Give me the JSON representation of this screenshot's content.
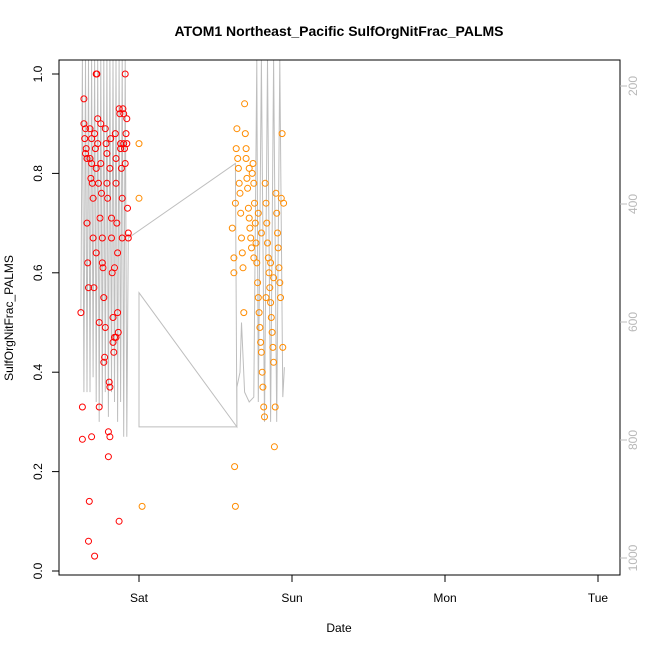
{
  "chart_data": {
    "type": "scatter",
    "title": "ATOM1 Northeast_Pacific SulfOrgNitFrac_PALMS",
    "xlabel": "Date",
    "ylabel": "SulfOrgNitFrac_PALMS",
    "x_ticks": [
      "Sat",
      "Sun",
      "Mon",
      "Tue"
    ],
    "ylim": [
      0,
      1.0
    ],
    "y_ticks": [
      "0.0",
      "0.2",
      "0.4",
      "0.6",
      "0.8",
      "1.0"
    ],
    "right_axis": {
      "reversed": true,
      "range": [
        180,
        1040
      ],
      "ticks": [
        "200",
        "400",
        "600",
        "800",
        "1000"
      ],
      "color": "#bebebe"
    },
    "colors": {
      "early": "#ff0000",
      "late": "#ff8c00",
      "line": "#bebebe"
    },
    "series": [
      {
        "values": [
          [
            -0.38,
            0.52
          ],
          [
            -0.37,
            0.33
          ],
          [
            -0.37,
            0.265
          ],
          [
            -0.36,
            0.95
          ],
          [
            -0.36,
            0.9
          ],
          [
            -0.355,
            0.87
          ],
          [
            -0.35,
            0.89
          ],
          [
            -0.35,
            0.84
          ],
          [
            -0.345,
            0.85
          ],
          [
            -0.34,
            0.83
          ],
          [
            -0.34,
            0.7
          ],
          [
            -0.335,
            0.62
          ],
          [
            -0.33,
            0.57
          ],
          [
            -0.33,
            0.06
          ],
          [
            -0.325,
            0.14
          ],
          [
            -0.32,
            0.83
          ],
          [
            -0.32,
            0.89
          ],
          [
            -0.315,
            0.79
          ],
          [
            -0.31,
            0.82
          ],
          [
            -0.31,
            0.87
          ],
          [
            -0.305,
            0.78
          ],
          [
            -0.3,
            0.75
          ],
          [
            -0.3,
            0.67
          ],
          [
            -0.295,
            0.57
          ],
          [
            -0.29,
            0.03
          ],
          [
            -0.29,
            0.88
          ],
          [
            -0.285,
            0.85
          ],
          [
            -0.28,
            0.81
          ],
          [
            -0.28,
            0.64
          ],
          [
            -0.275,
            1.0
          ],
          [
            -0.27,
            0.91
          ],
          [
            -0.27,
            0.86
          ],
          [
            -0.265,
            0.78
          ],
          [
            -0.26,
            0.5
          ],
          [
            -0.26,
            0.33
          ],
          [
            -0.255,
            0.71
          ],
          [
            -0.25,
            0.9
          ],
          [
            -0.25,
            0.82
          ],
          [
            -0.245,
            0.76
          ],
          [
            -0.24,
            0.67
          ],
          [
            -0.24,
            0.62
          ],
          [
            -0.235,
            0.61
          ],
          [
            -0.23,
            0.55
          ],
          [
            -0.23,
            0.42
          ],
          [
            -0.225,
            0.43
          ],
          [
            -0.22,
            0.49
          ],
          [
            -0.22,
            0.89
          ],
          [
            -0.215,
            0.86
          ],
          [
            -0.21,
            0.84
          ],
          [
            -0.21,
            0.78
          ],
          [
            -0.205,
            0.75
          ],
          [
            -0.2,
            0.28
          ],
          [
            -0.2,
            0.23
          ],
          [
            -0.195,
            0.38
          ],
          [
            -0.19,
            0.27
          ],
          [
            -0.19,
            0.81
          ],
          [
            -0.185,
            0.87
          ],
          [
            -0.18,
            0.71
          ],
          [
            -0.18,
            0.67
          ],
          [
            -0.175,
            0.6
          ],
          [
            -0.17,
            0.51
          ],
          [
            -0.17,
            0.46
          ],
          [
            -0.165,
            0.44
          ],
          [
            -0.16,
            0.47
          ],
          [
            -0.16,
            0.61
          ],
          [
            -0.155,
            0.88
          ],
          [
            -0.15,
            0.83
          ],
          [
            -0.15,
            0.78
          ],
          [
            -0.145,
            0.7
          ],
          [
            -0.14,
            0.64
          ],
          [
            -0.14,
            0.52
          ],
          [
            -0.135,
            0.48
          ],
          [
            -0.13,
            0.1
          ],
          [
            -0.13,
            0.93
          ],
          [
            -0.125,
            0.92
          ],
          [
            -0.12,
            0.86
          ],
          [
            -0.12,
            0.85
          ],
          [
            -0.115,
            0.81
          ],
          [
            -0.11,
            0.75
          ],
          [
            -0.11,
            0.67
          ],
          [
            -0.105,
            0.93
          ],
          [
            -0.1,
            0.92
          ],
          [
            -0.1,
            0.86
          ],
          [
            -0.095,
            0.85
          ],
          [
            -0.09,
            0.82
          ],
          [
            -0.09,
            1.0
          ],
          [
            -0.085,
            0.88
          ],
          [
            -0.08,
            0.86
          ],
          [
            -0.08,
            0.91
          ],
          [
            -0.075,
            0.73
          ],
          [
            -0.07,
            0.68
          ],
          [
            -0.07,
            0.67
          ],
          [
            -0.31,
            0.27
          ],
          [
            -0.28,
            1.0
          ],
          [
            -0.19,
            0.37
          ],
          [
            -0.15,
            0.47
          ]
        ]
      },
      {
        "values": [
          [
            0.0,
            0.86
          ],
          [
            0.0,
            0.75
          ],
          [
            0.02,
            0.13
          ],
          [
            0.61,
            0.69
          ],
          [
            0.62,
            0.63
          ],
          [
            0.62,
            0.6
          ],
          [
            0.625,
            0.21
          ],
          [
            0.63,
            0.13
          ],
          [
            0.63,
            0.74
          ],
          [
            0.635,
            0.85
          ],
          [
            0.64,
            0.89
          ],
          [
            0.645,
            0.83
          ],
          [
            0.65,
            0.81
          ],
          [
            0.655,
            0.78
          ],
          [
            0.66,
            0.76
          ],
          [
            0.665,
            0.72
          ],
          [
            0.67,
            0.67
          ],
          [
            0.675,
            0.64
          ],
          [
            0.68,
            0.61
          ],
          [
            0.685,
            0.52
          ],
          [
            0.69,
            0.94
          ],
          [
            0.695,
            0.88
          ],
          [
            0.7,
            0.83
          ],
          [
            0.705,
            0.79
          ],
          [
            0.71,
            0.77
          ],
          [
            0.715,
            0.73
          ],
          [
            0.72,
            0.71
          ],
          [
            0.725,
            0.69
          ],
          [
            0.73,
            0.67
          ],
          [
            0.735,
            0.65
          ],
          [
            0.74,
            0.8
          ],
          [
            0.745,
            0.82
          ],
          [
            0.75,
            0.78
          ],
          [
            0.755,
            0.74
          ],
          [
            0.76,
            0.7
          ],
          [
            0.765,
            0.66
          ],
          [
            0.77,
            0.62
          ],
          [
            0.775,
            0.58
          ],
          [
            0.78,
            0.55
          ],
          [
            0.785,
            0.52
          ],
          [
            0.79,
            0.49
          ],
          [
            0.795,
            0.46
          ],
          [
            0.8,
            0.44
          ],
          [
            0.805,
            0.4
          ],
          [
            0.81,
            0.37
          ],
          [
            0.815,
            0.33
          ],
          [
            0.82,
            0.31
          ],
          [
            0.825,
            0.78
          ],
          [
            0.83,
            0.74
          ],
          [
            0.835,
            0.7
          ],
          [
            0.84,
            0.66
          ],
          [
            0.845,
            0.63
          ],
          [
            0.85,
            0.6
          ],
          [
            0.855,
            0.57
          ],
          [
            0.86,
            0.54
          ],
          [
            0.865,
            0.51
          ],
          [
            0.87,
            0.48
          ],
          [
            0.875,
            0.45
          ],
          [
            0.88,
            0.42
          ],
          [
            0.885,
            0.25
          ],
          [
            0.89,
            0.33
          ],
          [
            0.895,
            0.76
          ],
          [
            0.9,
            0.72
          ],
          [
            0.905,
            0.68
          ],
          [
            0.91,
            0.65
          ],
          [
            0.915,
            0.61
          ],
          [
            0.92,
            0.58
          ],
          [
            0.925,
            0.55
          ],
          [
            0.93,
            0.75
          ],
          [
            0.935,
            0.88
          ],
          [
            0.94,
            0.45
          ],
          [
            0.945,
            0.74
          ],
          [
            0.7,
            0.85
          ],
          [
            0.72,
            0.81
          ],
          [
            0.75,
            0.63
          ],
          [
            0.78,
            0.72
          ],
          [
            0.8,
            0.68
          ],
          [
            0.83,
            0.55
          ],
          [
            0.86,
            0.62
          ],
          [
            0.88,
            0.59
          ]
        ]
      }
    ],
    "altitude_line": [
      [
        -0.38,
        0.52
      ],
      [
        -0.37,
        1.05
      ],
      [
        -0.36,
        0.36
      ],
      [
        -0.35,
        1.05
      ],
      [
        -0.34,
        0.36
      ],
      [
        -0.33,
        1.05
      ],
      [
        -0.32,
        0.36
      ],
      [
        -0.31,
        1.05
      ],
      [
        -0.3,
        0.39
      ],
      [
        -0.29,
        1.05
      ],
      [
        -0.28,
        0.34
      ],
      [
        -0.27,
        1.05
      ],
      [
        -0.26,
        0.3
      ],
      [
        -0.25,
        1.05
      ],
      [
        -0.24,
        0.33
      ],
      [
        -0.23,
        1.05
      ],
      [
        -0.22,
        0.36
      ],
      [
        -0.21,
        1.05
      ],
      [
        -0.2,
        0.31
      ],
      [
        -0.19,
        1.05
      ],
      [
        -0.18,
        0.36
      ],
      [
        -0.17,
        1.05
      ],
      [
        -0.16,
        0.34
      ],
      [
        -0.15,
        1.05
      ],
      [
        -0.14,
        0.3
      ],
      [
        -0.13,
        1.05
      ],
      [
        -0.12,
        0.34
      ],
      [
        -0.11,
        1.05
      ],
      [
        -0.1,
        0.27
      ],
      [
        -0.09,
        1.05
      ],
      [
        -0.08,
        0.27
      ],
      [
        -0.07,
        0.67
      ],
      [
        0.63,
        0.82
      ],
      [
        0.64,
        0.29
      ],
      [
        0.0,
        0.29
      ],
      [
        0.0,
        0.56
      ],
      [
        0.0,
        0.56
      ],
      [
        0.64,
        0.29
      ],
      [
        0.64,
        0.37
      ],
      [
        0.66,
        0.4
      ],
      [
        0.67,
        0.5
      ],
      [
        0.69,
        0.36
      ],
      [
        0.72,
        0.34
      ],
      [
        0.75,
        0.35
      ],
      [
        0.77,
        1.05
      ],
      [
        0.78,
        0.34
      ],
      [
        0.8,
        1.05
      ],
      [
        0.82,
        0.3
      ],
      [
        0.84,
        1.05
      ],
      [
        0.86,
        0.3
      ],
      [
        0.88,
        1.05
      ],
      [
        0.9,
        0.3
      ],
      [
        0.92,
        1.05
      ],
      [
        0.94,
        0.35
      ],
      [
        0.95,
        0.41
      ]
    ]
  }
}
